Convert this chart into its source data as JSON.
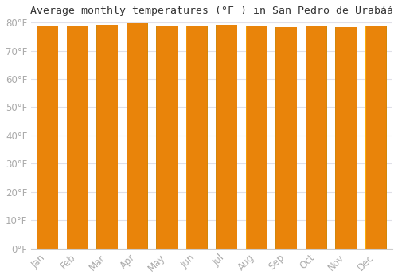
{
  "title": "Average monthly temperatures (°F ) in San Pedro de Urabáá",
  "months": [
    "Jan",
    "Feb",
    "Mar",
    "Apr",
    "May",
    "Jun",
    "Jul",
    "Aug",
    "Sep",
    "Oct",
    "Nov",
    "Dec"
  ],
  "values": [
    78.8,
    78.8,
    79.3,
    79.7,
    78.6,
    78.9,
    79.3,
    78.7,
    78.3,
    78.8,
    78.4,
    78.9
  ],
  "ylim": [
    0,
    80
  ],
  "yticks": [
    0,
    10,
    20,
    30,
    40,
    50,
    60,
    70,
    80
  ],
  "ytick_labels": [
    "0°F",
    "10°F",
    "20°F",
    "30°F",
    "40°F",
    "50°F",
    "60°F",
    "70°F",
    "80°F"
  ],
  "bar_color_left": "#E8820A",
  "bar_color_center": "#FFB830",
  "bar_color_right": "#F5A020",
  "bar_edge_color": "#D4870A",
  "background_color": "#ffffff",
  "grid_color": "#e0e0e8",
  "title_fontsize": 9.5,
  "tick_fontsize": 8.5,
  "tick_color": "#aaaaaa"
}
